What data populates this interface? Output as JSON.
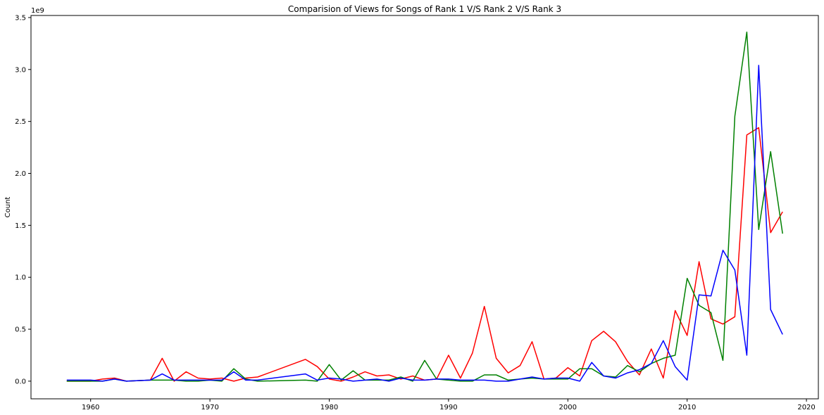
{
  "chart_data": {
    "type": "line",
    "title": "Comparision of Views for Songs of Rank 1 V/S Rank 2 V/S Rank 3",
    "xlabel": "",
    "ylabel": "Count",
    "y_multiplier_label": "1e9",
    "xlim": [
      1955,
      2021
    ],
    "ylim": [
      -0.17,
      3.52
    ],
    "x_ticks": [
      1960,
      1970,
      1980,
      1990,
      2000,
      2010,
      2020
    ],
    "y_ticks": [
      0.0,
      0.5,
      1.0,
      1.5,
      2.0,
      2.5,
      3.0,
      3.5
    ],
    "y_tick_labels": [
      "0.0",
      "0.5",
      "1.0",
      "1.5",
      "2.0",
      "2.5",
      "3.0",
      "3.5"
    ],
    "series": [
      {
        "name": "Rank 1",
        "color": "#ff0000",
        "points": [
          [
            1958,
            0.0
          ],
          [
            1960,
            0.0
          ],
          [
            1961,
            0.02
          ],
          [
            1962,
            0.03
          ],
          [
            1963,
            0.0
          ],
          [
            1965,
            0.01
          ],
          [
            1966,
            0.22
          ],
          [
            1967,
            0.0
          ],
          [
            1968,
            0.09
          ],
          [
            1969,
            0.03
          ],
          [
            1970,
            0.02
          ],
          [
            1971,
            0.03
          ],
          [
            1972,
            0.0
          ],
          [
            1973,
            0.03
          ],
          [
            1974,
            0.04
          ],
          [
            1978,
            0.21
          ],
          [
            1979,
            0.14
          ],
          [
            1980,
            0.02
          ],
          [
            1981,
            0.0
          ],
          [
            1982,
            0.04
          ],
          [
            1983,
            0.09
          ],
          [
            1984,
            0.05
          ],
          [
            1985,
            0.06
          ],
          [
            1986,
            0.02
          ],
          [
            1987,
            0.05
          ],
          [
            1988,
            0.01
          ],
          [
            1989,
            0.02
          ],
          [
            1990,
            0.25
          ],
          [
            1991,
            0.03
          ],
          [
            1992,
            0.27
          ],
          [
            1993,
            0.72
          ],
          [
            1994,
            0.22
          ],
          [
            1995,
            0.08
          ],
          [
            1996,
            0.15
          ],
          [
            1997,
            0.38
          ],
          [
            1998,
            0.02
          ],
          [
            1999,
            0.03
          ],
          [
            2000,
            0.13
          ],
          [
            2001,
            0.05
          ],
          [
            2002,
            0.39
          ],
          [
            2003,
            0.48
          ],
          [
            2004,
            0.38
          ],
          [
            2005,
            0.19
          ],
          [
            2006,
            0.06
          ],
          [
            2007,
            0.31
          ],
          [
            2008,
            0.03
          ],
          [
            2009,
            0.68
          ],
          [
            2010,
            0.44
          ],
          [
            2011,
            1.15
          ],
          [
            2012,
            0.6
          ],
          [
            2013,
            0.55
          ],
          [
            2014,
            0.62
          ],
          [
            2015,
            2.37
          ],
          [
            2016,
            2.44
          ],
          [
            2017,
            1.43
          ],
          [
            2018,
            1.63
          ]
        ]
      },
      {
        "name": "Rank 2",
        "color": "#008000",
        "points": [
          [
            1958,
            0.0
          ],
          [
            1960,
            0.0
          ],
          [
            1961,
            0.0
          ],
          [
            1962,
            0.02
          ],
          [
            1963,
            0.0
          ],
          [
            1965,
            0.01
          ],
          [
            1966,
            0.01
          ],
          [
            1967,
            0.01
          ],
          [
            1968,
            0.0
          ],
          [
            1969,
            0.0
          ],
          [
            1970,
            0.01
          ],
          [
            1971,
            0.0
          ],
          [
            1972,
            0.12
          ],
          [
            1973,
            0.02
          ],
          [
            1974,
            0.0
          ],
          [
            1978,
            0.01
          ],
          [
            1979,
            0.0
          ],
          [
            1980,
            0.16
          ],
          [
            1981,
            0.01
          ],
          [
            1982,
            0.1
          ],
          [
            1983,
            0.01
          ],
          [
            1984,
            0.01
          ],
          [
            1985,
            0.01
          ],
          [
            1986,
            0.04
          ],
          [
            1987,
            0.0
          ],
          [
            1988,
            0.2
          ],
          [
            1989,
            0.02
          ],
          [
            1990,
            0.01
          ],
          [
            1991,
            0.0
          ],
          [
            1992,
            0.0
          ],
          [
            1993,
            0.06
          ],
          [
            1994,
            0.06
          ],
          [
            1995,
            0.01
          ],
          [
            1996,
            0.02
          ],
          [
            1997,
            0.03
          ],
          [
            1998,
            0.02
          ],
          [
            1999,
            0.02
          ],
          [
            2000,
            0.02
          ],
          [
            2001,
            0.12
          ],
          [
            2002,
            0.12
          ],
          [
            2003,
            0.05
          ],
          [
            2004,
            0.04
          ],
          [
            2005,
            0.15
          ],
          [
            2006,
            0.09
          ],
          [
            2007,
            0.17
          ],
          [
            2008,
            0.22
          ],
          [
            2009,
            0.25
          ],
          [
            2010,
            0.99
          ],
          [
            2011,
            0.73
          ],
          [
            2012,
            0.66
          ],
          [
            2013,
            0.2
          ],
          [
            2014,
            2.55
          ],
          [
            2015,
            3.36
          ],
          [
            2016,
            1.46
          ],
          [
            2017,
            2.21
          ],
          [
            2018,
            1.42
          ]
        ]
      },
      {
        "name": "Rank 3",
        "color": "#0000ff",
        "points": [
          [
            1958,
            0.01
          ],
          [
            1960,
            0.01
          ],
          [
            1961,
            0.0
          ],
          [
            1962,
            0.02
          ],
          [
            1963,
            0.0
          ],
          [
            1965,
            0.01
          ],
          [
            1966,
            0.07
          ],
          [
            1967,
            0.01
          ],
          [
            1968,
            0.01
          ],
          [
            1969,
            0.01
          ],
          [
            1970,
            0.01
          ],
          [
            1971,
            0.01
          ],
          [
            1972,
            0.09
          ],
          [
            1973,
            0.01
          ],
          [
            1974,
            0.01
          ],
          [
            1978,
            0.07
          ],
          [
            1979,
            0.01
          ],
          [
            1980,
            0.03
          ],
          [
            1981,
            0.02
          ],
          [
            1982,
            0.0
          ],
          [
            1983,
            0.01
          ],
          [
            1984,
            0.02
          ],
          [
            1985,
            0.0
          ],
          [
            1986,
            0.03
          ],
          [
            1987,
            0.01
          ],
          [
            1988,
            0.01
          ],
          [
            1989,
            0.02
          ],
          [
            1990,
            0.02
          ],
          [
            1991,
            0.01
          ],
          [
            1992,
            0.01
          ],
          [
            1993,
            0.01
          ],
          [
            1994,
            0.0
          ],
          [
            1995,
            0.0
          ],
          [
            1996,
            0.02
          ],
          [
            1997,
            0.04
          ],
          [
            1998,
            0.02
          ],
          [
            1999,
            0.03
          ],
          [
            2000,
            0.03
          ],
          [
            2001,
            0.0
          ],
          [
            2002,
            0.18
          ],
          [
            2003,
            0.05
          ],
          [
            2004,
            0.03
          ],
          [
            2005,
            0.08
          ],
          [
            2006,
            0.11
          ],
          [
            2007,
            0.17
          ],
          [
            2008,
            0.39
          ],
          [
            2009,
            0.14
          ],
          [
            2010,
            0.01
          ],
          [
            2011,
            0.83
          ],
          [
            2012,
            0.82
          ],
          [
            2013,
            1.26
          ],
          [
            2014,
            1.07
          ],
          [
            2015,
            0.25
          ],
          [
            2016,
            3.04
          ],
          [
            2017,
            0.69
          ],
          [
            2018,
            0.45
          ]
        ]
      }
    ]
  }
}
